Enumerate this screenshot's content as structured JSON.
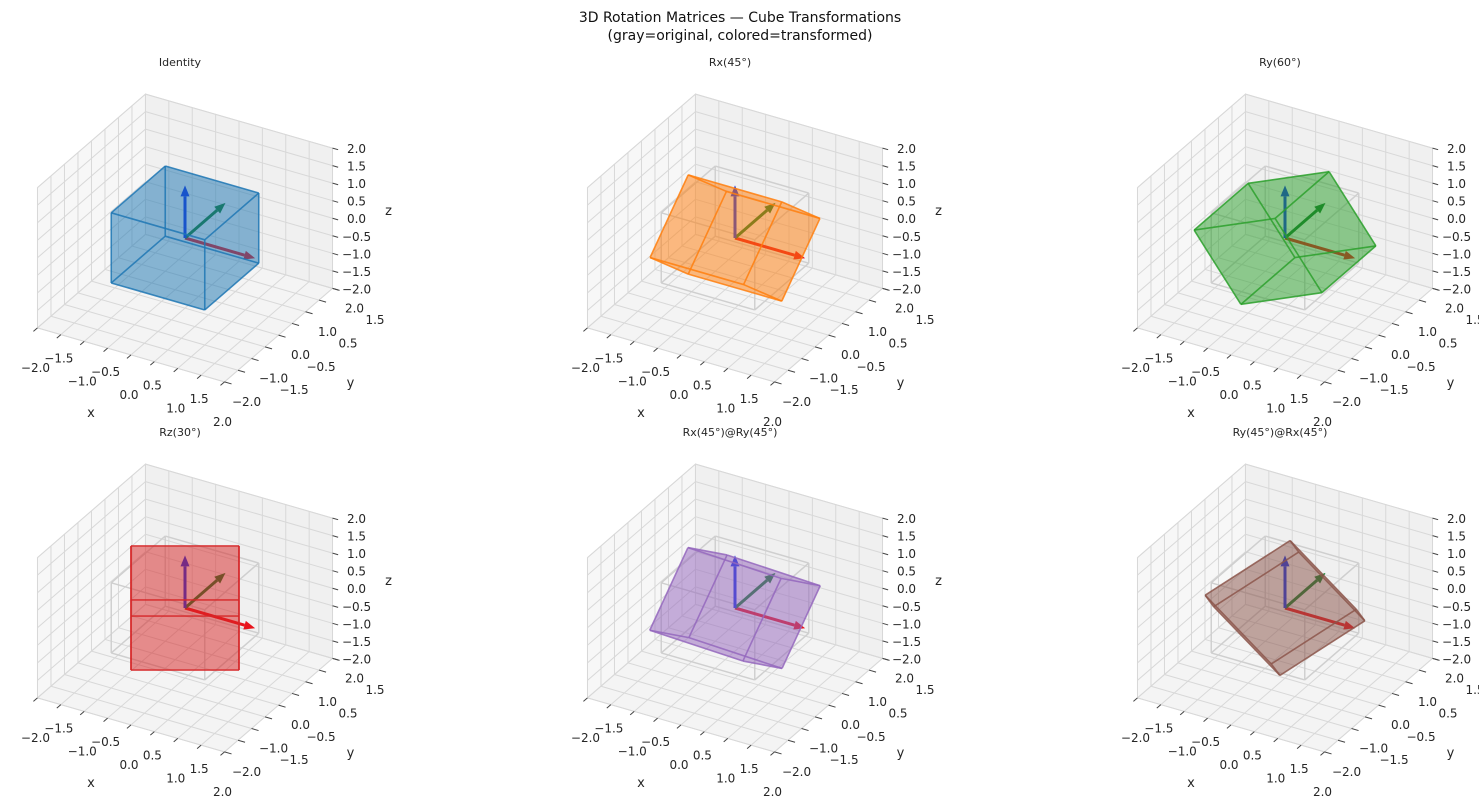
{
  "chart_data": {
    "type": "3d-wireframe",
    "title": "3D Rotation Matrices — Cube Transformations",
    "subtitle": "(gray=original, colored=transformed)",
    "view": {
      "elev": 30,
      "azim": -60
    },
    "axes": {
      "xlim": [
        -2,
        2
      ],
      "ylim": [
        -2,
        2
      ],
      "zlim": [
        -2,
        2
      ],
      "ticks": [
        -2,
        -1.5,
        -1,
        -0.5,
        0,
        0.5,
        1,
        1.5,
        2
      ],
      "tick_labels": [
        "−2.0",
        "−1.5",
        "−1.0",
        "−0.5",
        "0.0",
        "0.5",
        "1.0",
        "1.5",
        "2.0"
      ],
      "xlabel": "x",
      "ylabel": "y",
      "zlabel": "z",
      "grid": true
    },
    "cube": {
      "min": -1,
      "max": 1,
      "original_color": "#cfcfcf"
    },
    "basis_arrows": {
      "length": 1.5,
      "colors": {
        "x": "#e8141c",
        "y": "#157a2a",
        "z": "#1330e6"
      }
    },
    "panels": [
      {
        "title": "Identity",
        "ops": [],
        "color": "#1f77b4",
        "show_original": false
      },
      {
        "title": "Rx(45°)",
        "ops": [
          [
            "x",
            45
          ]
        ],
        "color": "#ff7f0e",
        "show_original": true
      },
      {
        "title": "Ry(60°)",
        "ops": [
          [
            "y",
            60
          ]
        ],
        "color": "#2ca02c",
        "show_original": true
      },
      {
        "title": "Rz(30°)",
        "ops": [
          [
            "z",
            30
          ]
        ],
        "color": "#d62728",
        "show_original": true
      },
      {
        "title": "Rx(45°)@Ry(45°)",
        "ops": [
          [
            "x",
            45
          ],
          [
            "y",
            45
          ]
        ],
        "color": "#9467bd",
        "show_original": true
      },
      {
        "title": "Ry(45°)@Rx(45°)",
        "ops": [
          [
            "y",
            45
          ],
          [
            "x",
            45
          ]
        ],
        "color": "#8c564b",
        "show_original": true
      }
    ]
  }
}
